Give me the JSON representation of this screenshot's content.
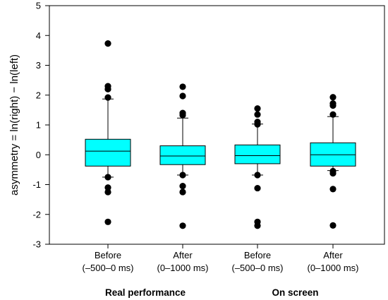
{
  "chart_data": {
    "type": "box",
    "ylabel": "asymmetry = ln(right) − ln(left)",
    "ylim": [
      -3,
      5
    ],
    "yticks": [
      -3,
      -2,
      -1,
      0,
      1,
      2,
      3,
      4,
      5
    ],
    "ytick_labels": [
      "-3",
      "-2",
      "-1",
      "0",
      "1",
      "2",
      "3",
      "4",
      "5"
    ],
    "grid": false,
    "box_color": "#00FFFF",
    "outlier_color": "#000000",
    "boxes": [
      {
        "label_line1": "Before",
        "label_line2": "(–500–0 ms)",
        "q1": -0.38,
        "median": 0.12,
        "q3": 0.52,
        "whisker_low": -0.75,
        "whisker_high": 1.87,
        "outliers": [
          3.73,
          2.3,
          2.2,
          1.92,
          -0.75,
          -1.1,
          -1.25,
          -2.25
        ]
      },
      {
        "label_line1": "After",
        "label_line2": "(0–1000 ms)",
        "q1": -0.33,
        "median": -0.04,
        "q3": 0.3,
        "whisker_low": -0.68,
        "whisker_high": 1.23,
        "outliers": [
          2.28,
          1.97,
          1.4,
          1.33,
          -0.68,
          -1.05,
          -1.25,
          -2.38
        ]
      },
      {
        "label_line1": "Before",
        "label_line2": "(–500–0 ms)",
        "q1": -0.3,
        "median": -0.03,
        "q3": 0.33,
        "whisker_low": -0.68,
        "whisker_high": 1.03,
        "outliers": [
          1.55,
          1.35,
          1.1,
          1.02,
          -0.68,
          -1.12,
          -2.25,
          -2.38
        ]
      },
      {
        "label_line1": "After",
        "label_line2": "(0–1000 ms)",
        "q1": -0.38,
        "median": 0.0,
        "q3": 0.4,
        "whisker_low": -0.53,
        "whisker_high": 1.28,
        "outliers": [
          1.93,
          1.72,
          1.65,
          1.35,
          -0.55,
          -0.62,
          -1.15,
          -2.37
        ]
      }
    ],
    "groups": [
      {
        "label": "Real performance",
        "boxes": [
          0,
          1
        ]
      },
      {
        "label": "On screen",
        "boxes": [
          2,
          3
        ]
      }
    ]
  }
}
